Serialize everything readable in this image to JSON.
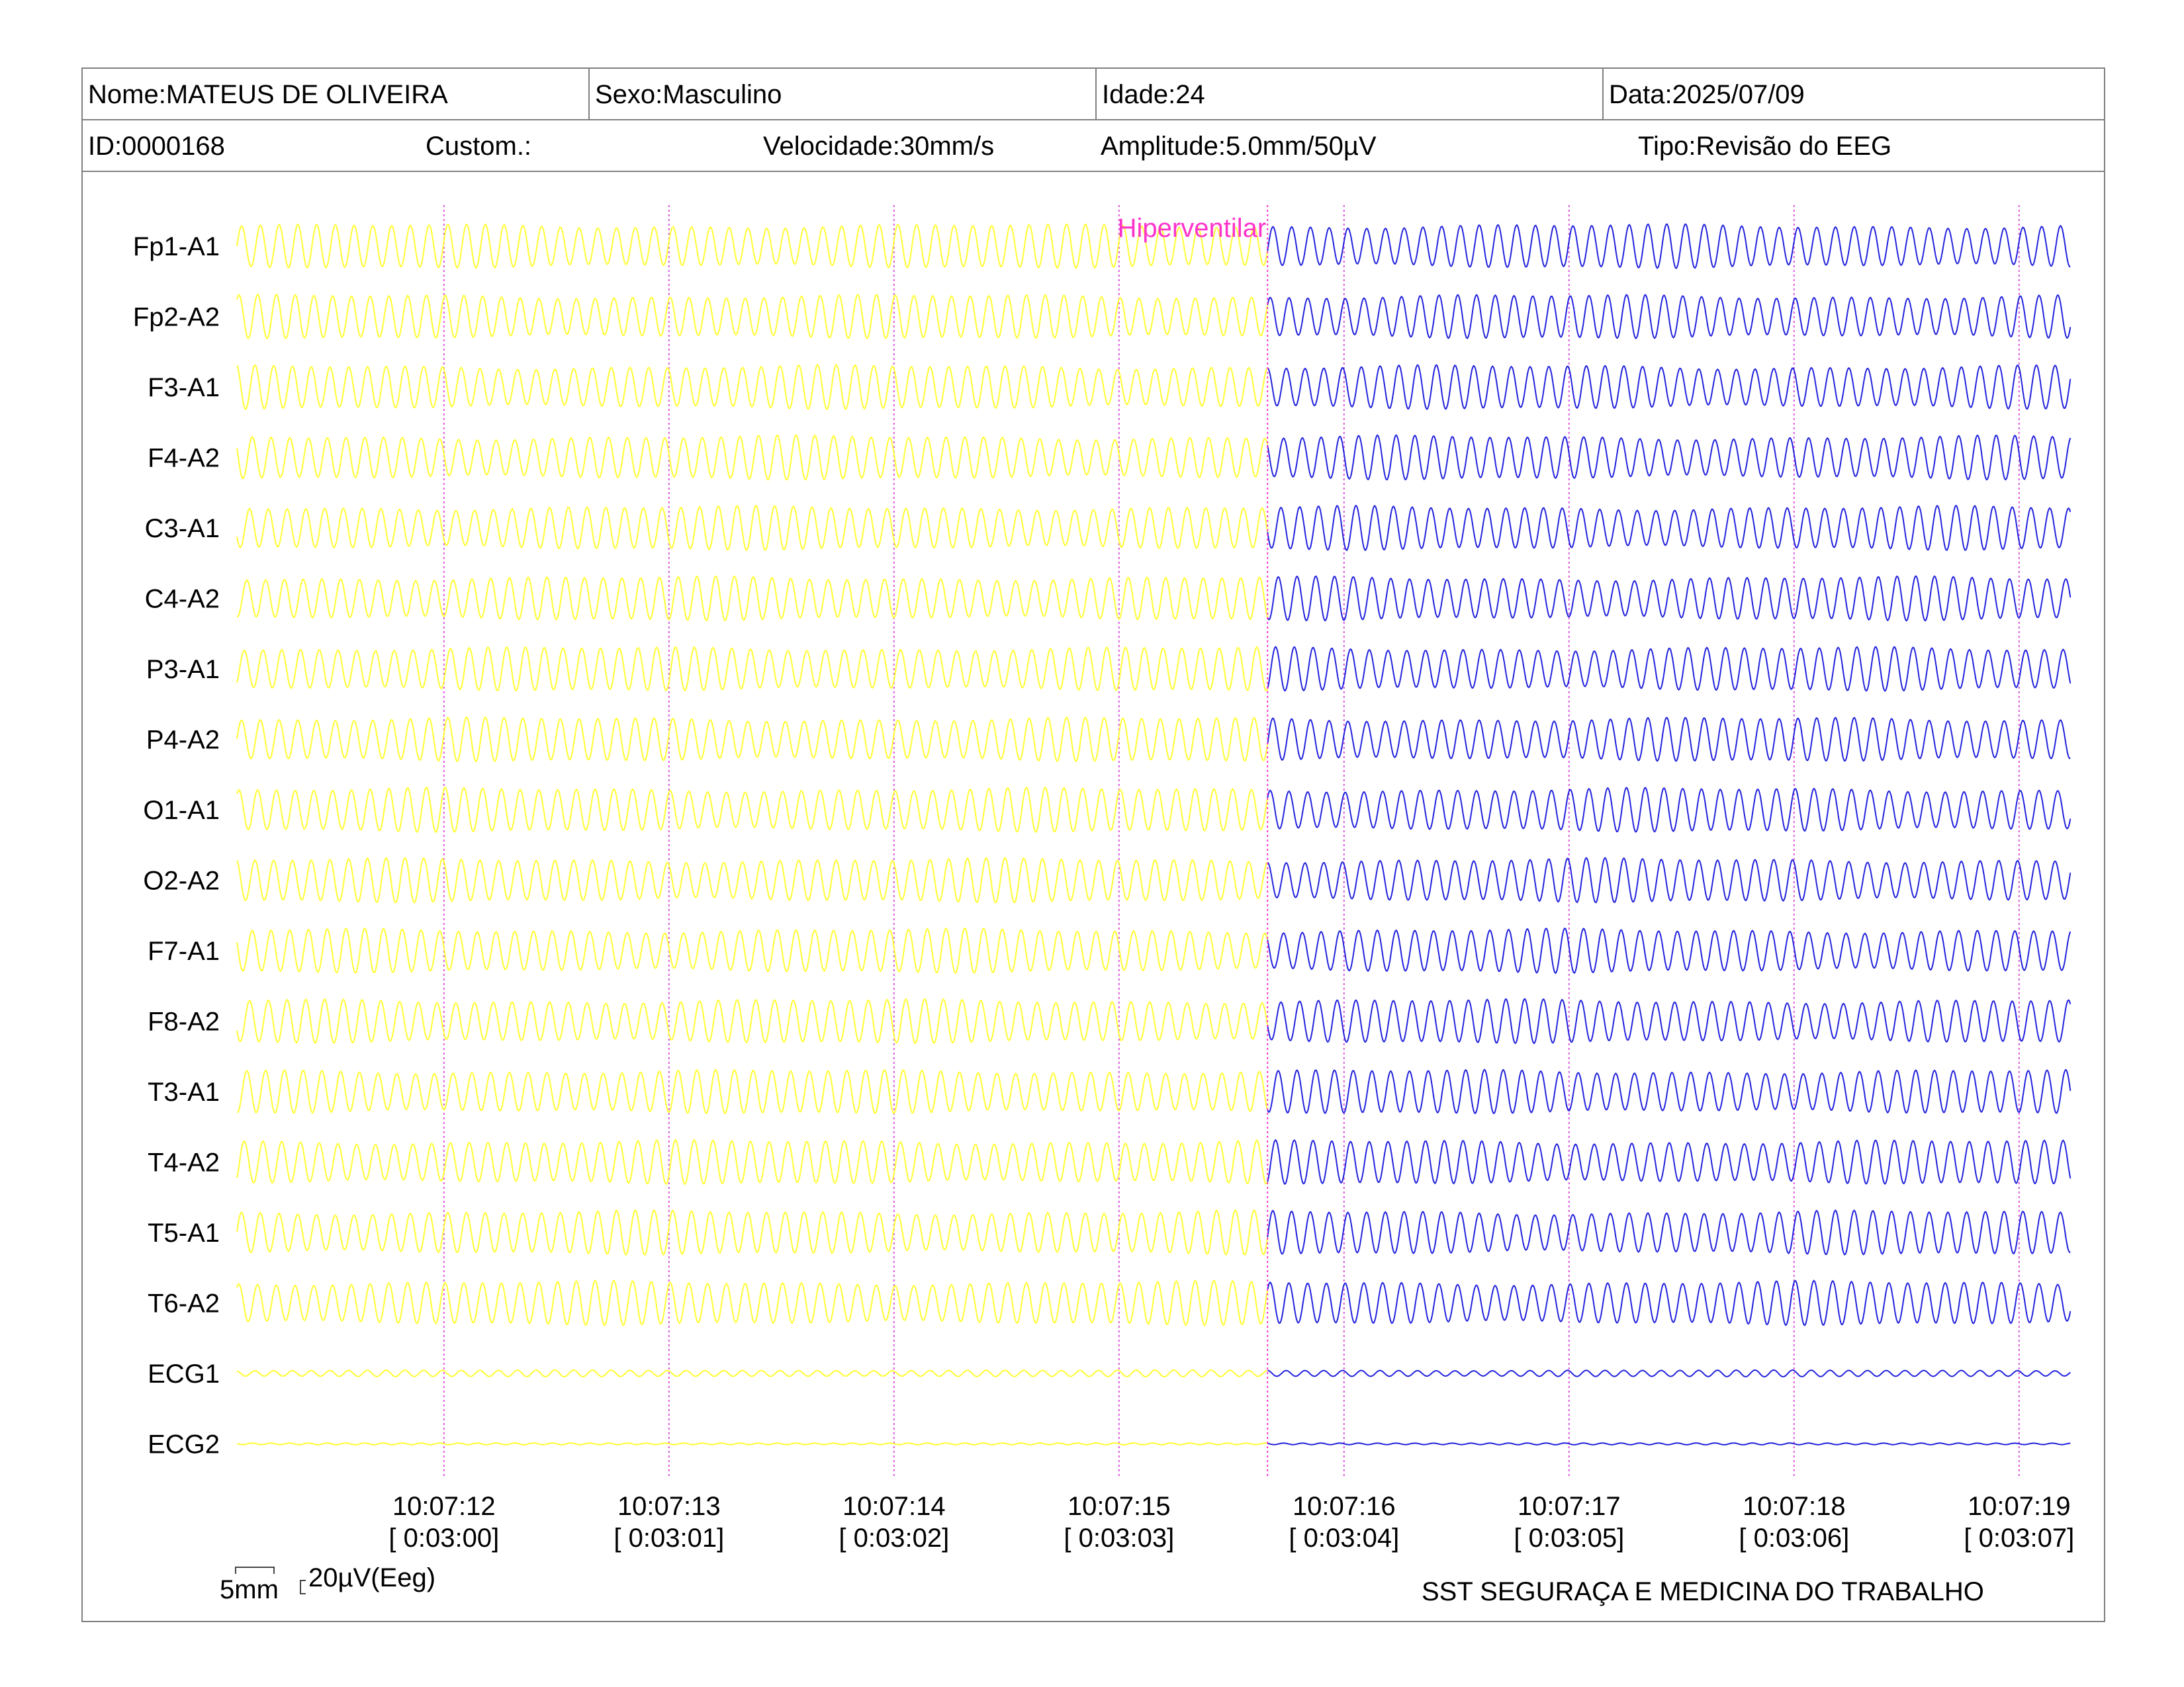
{
  "header": {
    "name": "Nome:MATEUS DE OLIVEIRA",
    "sex": "Sexo:Masculino",
    "age": "Idade:24",
    "date": "Data:2025/07/09",
    "id": "ID:0000168",
    "custom": "Custom.:",
    "speed": "Velocidade:30mm/s",
    "amplitude": "Amplitude:5.0mm/50µV",
    "type": "Tipo:Revisão do EEG"
  },
  "chart_data": {
    "type": "line",
    "title": "",
    "xlabel": "",
    "ylabel": "",
    "channels": [
      "Fp1-A1",
      "Fp2-A2",
      "F3-A1",
      "F4-A2",
      "C3-A1",
      "C4-A2",
      "P3-A1",
      "P4-A2",
      "O1-A1",
      "O2-A2",
      "F7-A1",
      "F8-A2",
      "T3-A1",
      "T4-A2",
      "T5-A1",
      "T6-A2",
      "ECG1",
      "ECG2"
    ],
    "x_range_s": [
      0,
      8.15
    ],
    "ticks": [
      {
        "s": 0.92,
        "time": "10:07:12",
        "elapsed": "[ 0:03:00]"
      },
      {
        "s": 1.92,
        "time": "10:07:13",
        "elapsed": "[ 0:03:01]"
      },
      {
        "s": 2.92,
        "time": "10:07:14",
        "elapsed": "[ 0:03:02]"
      },
      {
        "s": 3.92,
        "time": "10:07:15",
        "elapsed": "[ 0:03:03]"
      },
      {
        "s": 4.92,
        "time": "10:07:16",
        "elapsed": "[ 0:03:04]"
      },
      {
        "s": 5.92,
        "time": "10:07:17",
        "elapsed": "[ 0:03:05]"
      },
      {
        "s": 6.92,
        "time": "10:07:18",
        "elapsed": "[ 0:03:06]"
      },
      {
        "s": 7.92,
        "time": "10:07:19",
        "elapsed": "[ 0:03:07]"
      }
    ],
    "event": {
      "s": 4.58,
      "label": "Hiperventilar",
      "color": "#ff33cc"
    },
    "segments": [
      {
        "start_s": 0.0,
        "end_s": 4.58,
        "color": "#ffff33"
      },
      {
        "start_s": 4.58,
        "end_s": 8.15,
        "color": "#2222dd"
      }
    ],
    "wave_frequency_hz": 12,
    "eeg_amplitude_uv": 100,
    "ecg1_amplitude_uv": 15,
    "ecg2_amplitude_uv": 4,
    "grid_color": "#dd55dd"
  },
  "scale_bar": {
    "mm_label": "5mm",
    "uv_label": "20µV(Eeg)"
  },
  "footer": {
    "organization": "SST SEGURAÇA E MEDICINA DO TRABALHO"
  }
}
